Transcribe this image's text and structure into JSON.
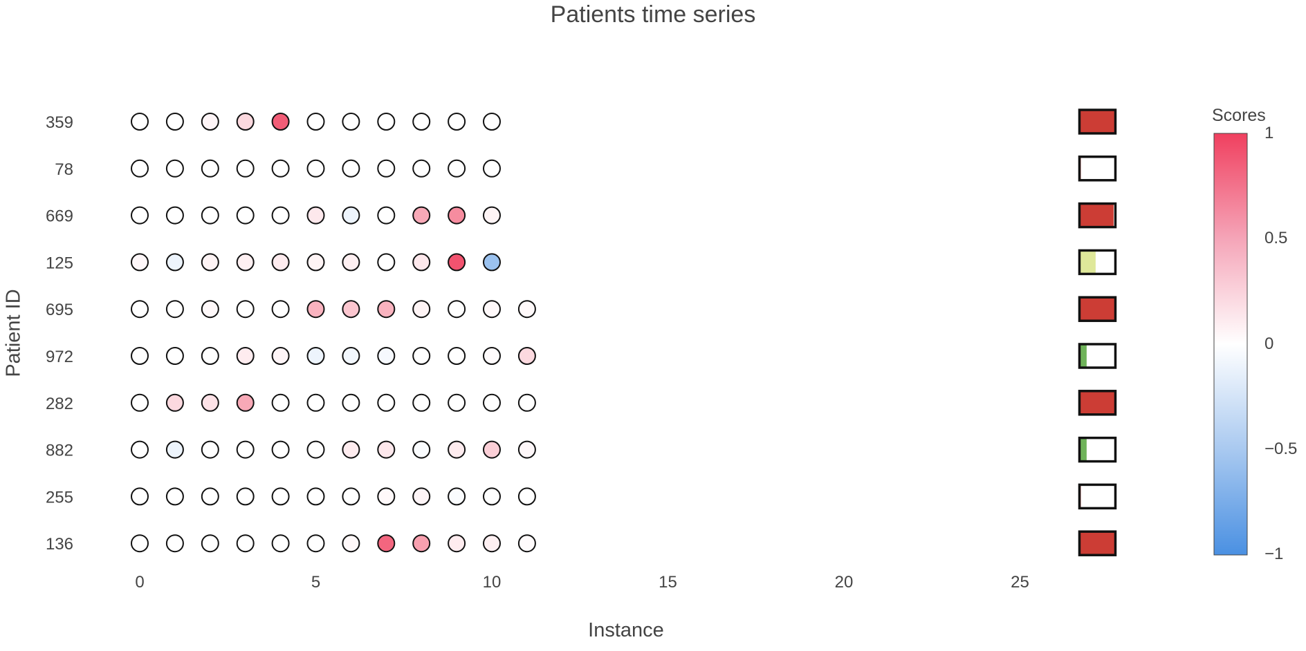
{
  "chart_data": {
    "type": "scatter",
    "title": "Patients time series",
    "xlabel": "Instance",
    "ylabel": "Patient ID",
    "xlim": [
      -0.6,
      27.2
    ],
    "xticks": [
      0,
      5,
      10,
      15,
      20,
      25
    ],
    "grid": false,
    "colorscale": {
      "min_color": "#4a90e2",
      "mid_color": "#ffffff",
      "max_color": "#f0405f",
      "range": [
        -1,
        1
      ]
    },
    "colorbar": {
      "title": "Scores",
      "ticks": [
        "1",
        "0.5",
        "0",
        "−0.5",
        "−1"
      ],
      "tick_values": [
        1,
        0.5,
        0,
        -0.5,
        -1
      ]
    },
    "patients": [
      {
        "id": "359",
        "scores": [
          0,
          0,
          0.05,
          0.2,
          0.85,
          0,
          0,
          0,
          0,
          0,
          0
        ],
        "indicator": {
          "fill": 1.0,
          "color": "#cc3d35"
        }
      },
      {
        "id": "78",
        "scores": [
          0,
          0,
          0,
          0,
          0,
          0,
          0,
          0,
          0,
          0,
          0
        ],
        "indicator": {
          "fill": 0.02,
          "color": "#cc3d35"
        }
      },
      {
        "id": "669",
        "scores": [
          0,
          0,
          0,
          0,
          0,
          0.12,
          -0.1,
          0,
          0.45,
          0.6,
          0.06
        ],
        "indicator": {
          "fill": 0.95,
          "color": "#cc3d35"
        }
      },
      {
        "id": "125",
        "scores": [
          0.04,
          -0.1,
          0.06,
          0.08,
          0.1,
          0.06,
          0.08,
          0,
          0.12,
          0.9,
          -0.55
        ],
        "indicator": {
          "fill": 0.45,
          "color": "#dfe89a"
        }
      },
      {
        "id": "695",
        "scores": [
          0,
          0,
          0.03,
          0,
          0,
          0.4,
          0.3,
          0.4,
          0.06,
          0,
          0.03,
          0.03
        ],
        "indicator": {
          "fill": 1.0,
          "color": "#cc3d35"
        }
      },
      {
        "id": "972",
        "scores": [
          0,
          0,
          0,
          0.1,
          0.05,
          -0.1,
          -0.07,
          -0.05,
          0,
          0,
          0.02,
          0.2
        ],
        "indicator": {
          "fill": 0.2,
          "color": "#6fb35a"
        }
      },
      {
        "id": "282",
        "scores": [
          0,
          0.2,
          0.15,
          0.45,
          0,
          0,
          0,
          0,
          0,
          0,
          0,
          0
        ],
        "indicator": {
          "fill": 1.0,
          "color": "#cc3d35"
        }
      },
      {
        "id": "882",
        "scores": [
          0,
          -0.1,
          0,
          0,
          0,
          0,
          0.1,
          0.12,
          -0.03,
          0.1,
          0.25,
          0.04
        ],
        "indicator": {
          "fill": 0.2,
          "color": "#6fb35a"
        }
      },
      {
        "id": "255",
        "scores": [
          0,
          0,
          0,
          0,
          0,
          0,
          0,
          0.03,
          0.05,
          -0.03,
          0,
          0
        ],
        "indicator": {
          "fill": 0.02,
          "color": "#cc3d35"
        }
      },
      {
        "id": "136",
        "scores": [
          0,
          0,
          0,
          0,
          0,
          0,
          0.03,
          0.8,
          0.5,
          0.1,
          0.08,
          0.02
        ],
        "indicator": {
          "fill": 1.0,
          "color": "#cc3d35"
        }
      }
    ],
    "indicator_x": 27.2
  }
}
